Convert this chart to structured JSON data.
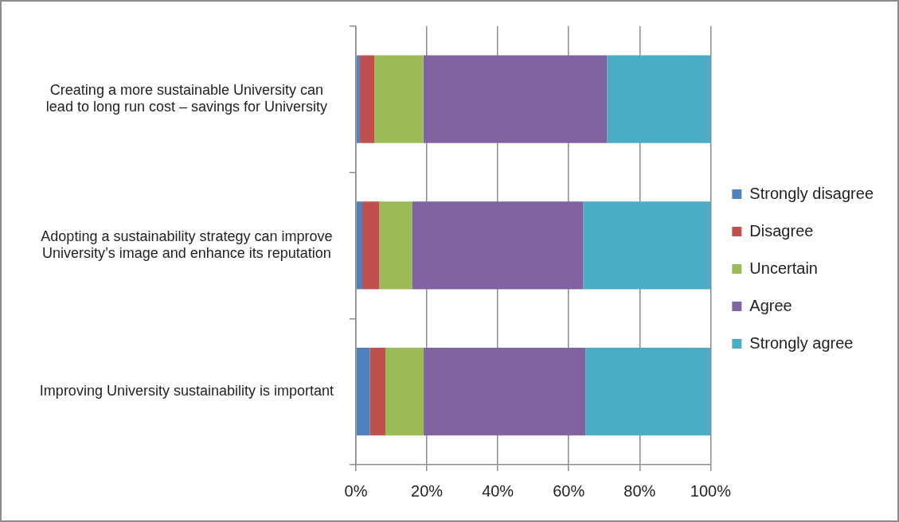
{
  "chart_data": {
    "type": "bar",
    "orientation": "horizontal",
    "stacked": true,
    "categories": [
      "Creating a more sustainable University can lead to long run cost – savings for University",
      "Adopting a sustainability strategy can improve University’s image and enhance its reputation",
      "Improving University sustainability is important"
    ],
    "series": [
      {
        "name": "Strongly disagree",
        "color": "#4f81bd",
        "values": [
          1.1,
          1.8,
          3.9
        ]
      },
      {
        "name": "Disagree",
        "color": "#c0504d",
        "values": [
          4.1,
          4.8,
          4.4
        ]
      },
      {
        "name": "Uncertain",
        "color": "#9bbb59",
        "values": [
          13.8,
          9.2,
          10.8
        ]
      },
      {
        "name": "Agree",
        "color": "#8064a2",
        "values": [
          51.8,
          48.3,
          45.6
        ]
      },
      {
        "name": "Strongly agree",
        "color": "#4bacc6",
        "values": [
          29.2,
          35.9,
          35.3
        ]
      }
    ],
    "xlim": [
      0,
      100
    ],
    "xticks": [
      {
        "value": 0,
        "label": "0%"
      },
      {
        "value": 20,
        "label": "20%"
      },
      {
        "value": 40,
        "label": "40%"
      },
      {
        "value": 60,
        "label": "60%"
      },
      {
        "value": 80,
        "label": "80%"
      },
      {
        "value": 100,
        "label": "100%"
      }
    ],
    "grid": "x",
    "legend": "right"
  }
}
